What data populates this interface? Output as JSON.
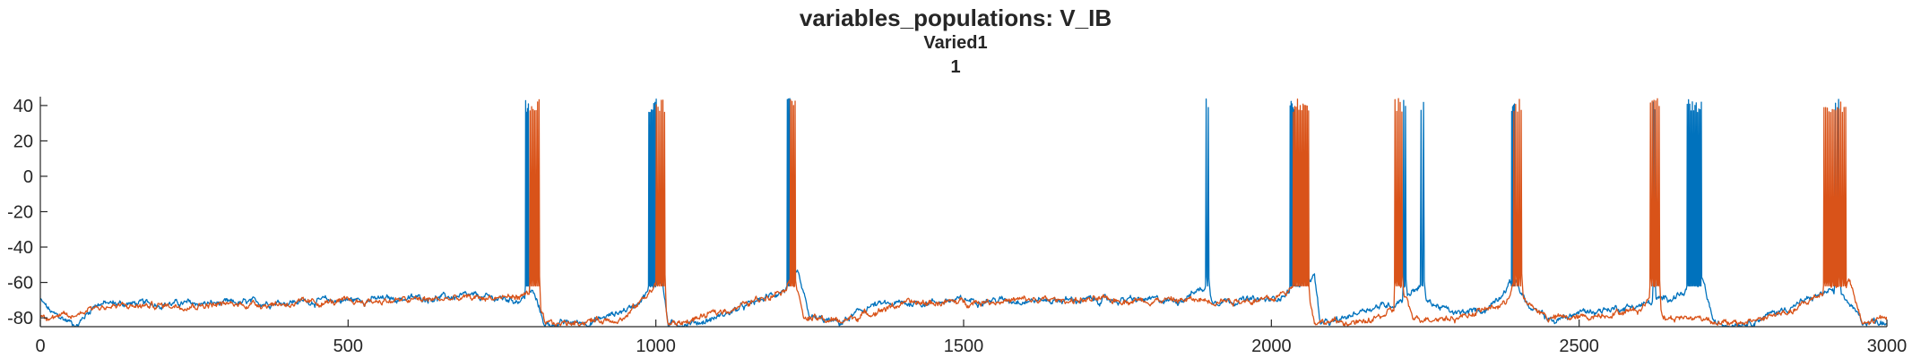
{
  "chart_data": {
    "type": "line",
    "title": "variables_populations: V_IB",
    "subtitle": "Varied1",
    "subtitle2": "1",
    "xlabel": "",
    "ylabel": "",
    "xlim": [
      0,
      3000
    ],
    "ylim": [
      -85,
      45
    ],
    "xticks": [
      "0",
      "500",
      "1000",
      "1500",
      "2000",
      "2500",
      "3000"
    ],
    "yticks": [
      "40",
      "20",
      "0",
      "-20",
      "-40",
      "-60",
      "-80"
    ],
    "grid": false,
    "legend": "none",
    "series": [
      {
        "color": "#0072BD",
        "baseline": [
          [
            0,
            -70
          ],
          [
            20,
            -78
          ],
          [
            60,
            -84
          ],
          [
            90,
            -72
          ],
          [
            300,
            -72
          ],
          [
            500,
            -70
          ],
          [
            700,
            -68
          ],
          [
            780,
            -70
          ],
          [
            800,
            -65
          ],
          [
            820,
            -84
          ],
          [
            900,
            -82
          ],
          [
            960,
            -74
          ],
          [
            990,
            -64
          ],
          [
            1000,
            -60
          ],
          [
            1010,
            -58
          ],
          [
            1020,
            -84
          ],
          [
            1080,
            -82
          ],
          [
            1150,
            -73
          ],
          [
            1210,
            -64
          ],
          [
            1230,
            -55
          ],
          [
            1250,
            -80
          ],
          [
            1300,
            -83
          ],
          [
            1350,
            -73
          ],
          [
            1500,
            -70
          ],
          [
            1700,
            -70
          ],
          [
            1850,
            -70
          ],
          [
            1895,
            -62
          ],
          [
            1905,
            -70
          ],
          [
            2000,
            -70
          ],
          [
            2030,
            -65
          ],
          [
            2070,
            -56
          ],
          [
            2080,
            -84
          ],
          [
            2110,
            -82
          ],
          [
            2150,
            -75
          ],
          [
            2200,
            -72
          ],
          [
            2240,
            -62
          ],
          [
            2250,
            -70
          ],
          [
            2300,
            -78
          ],
          [
            2350,
            -75
          ],
          [
            2395,
            -58
          ],
          [
            2405,
            -65
          ],
          [
            2420,
            -75
          ],
          [
            2460,
            -82
          ],
          [
            2500,
            -77
          ],
          [
            2600,
            -73
          ],
          [
            2670,
            -66
          ],
          [
            2700,
            -58
          ],
          [
            2720,
            -84
          ],
          [
            2780,
            -82
          ],
          [
            2850,
            -73
          ],
          [
            2905,
            -65
          ],
          [
            2930,
            -68
          ],
          [
            2960,
            -82
          ],
          [
            3000,
            -82
          ]
        ],
        "bursts": [
          [
            788,
            794,
            4
          ],
          [
            988,
            1002,
            7
          ],
          [
            1213,
            1219,
            3
          ],
          [
            1893,
            1900,
            2
          ],
          [
            2030,
            2038,
            5
          ],
          [
            2214,
            2220,
            2
          ],
          [
            2242,
            2250,
            2
          ],
          [
            2390,
            2396,
            4
          ],
          [
            2620,
            2624,
            2
          ],
          [
            2675,
            2700,
            12
          ],
          [
            2915,
            2925,
            2
          ]
        ]
      },
      {
        "color": "#D95319",
        "baseline": [
          [
            0,
            -78
          ],
          [
            50,
            -80
          ],
          [
            80,
            -74
          ],
          [
            200,
            -73
          ],
          [
            400,
            -72
          ],
          [
            600,
            -70
          ],
          [
            780,
            -68
          ],
          [
            800,
            -64
          ],
          [
            820,
            -84
          ],
          [
            950,
            -80
          ],
          [
            990,
            -65
          ],
          [
            1010,
            -57
          ],
          [
            1020,
            -84
          ],
          [
            1050,
            -82
          ],
          [
            1150,
            -72
          ],
          [
            1210,
            -63
          ],
          [
            1225,
            -55
          ],
          [
            1240,
            -80
          ],
          [
            1300,
            -82
          ],
          [
            1400,
            -72
          ],
          [
            1600,
            -70
          ],
          [
            1800,
            -70
          ],
          [
            2000,
            -70
          ],
          [
            2040,
            -62
          ],
          [
            2055,
            -57
          ],
          [
            2070,
            -82
          ],
          [
            2150,
            -83
          ],
          [
            2200,
            -76
          ],
          [
            2215,
            -67
          ],
          [
            2230,
            -80
          ],
          [
            2300,
            -80
          ],
          [
            2380,
            -72
          ],
          [
            2395,
            -58
          ],
          [
            2410,
            -70
          ],
          [
            2450,
            -80
          ],
          [
            2500,
            -80
          ],
          [
            2600,
            -75
          ],
          [
            2620,
            -66
          ],
          [
            2640,
            -80
          ],
          [
            2700,
            -80
          ],
          [
            2750,
            -84
          ],
          [
            2850,
            -76
          ],
          [
            2920,
            -60
          ],
          [
            2940,
            -60
          ],
          [
            2960,
            -84
          ],
          [
            3000,
            -80
          ]
        ],
        "bursts": [
          [
            795,
            812,
            7
          ],
          [
            1000,
            1016,
            6
          ],
          [
            1218,
            1228,
            4
          ],
          [
            2035,
            2062,
            12
          ],
          [
            2200,
            2214,
            5
          ],
          [
            2393,
            2408,
            5
          ],
          [
            2615,
            2632,
            6
          ],
          [
            2897,
            2935,
            14
          ]
        ]
      }
    ]
  }
}
